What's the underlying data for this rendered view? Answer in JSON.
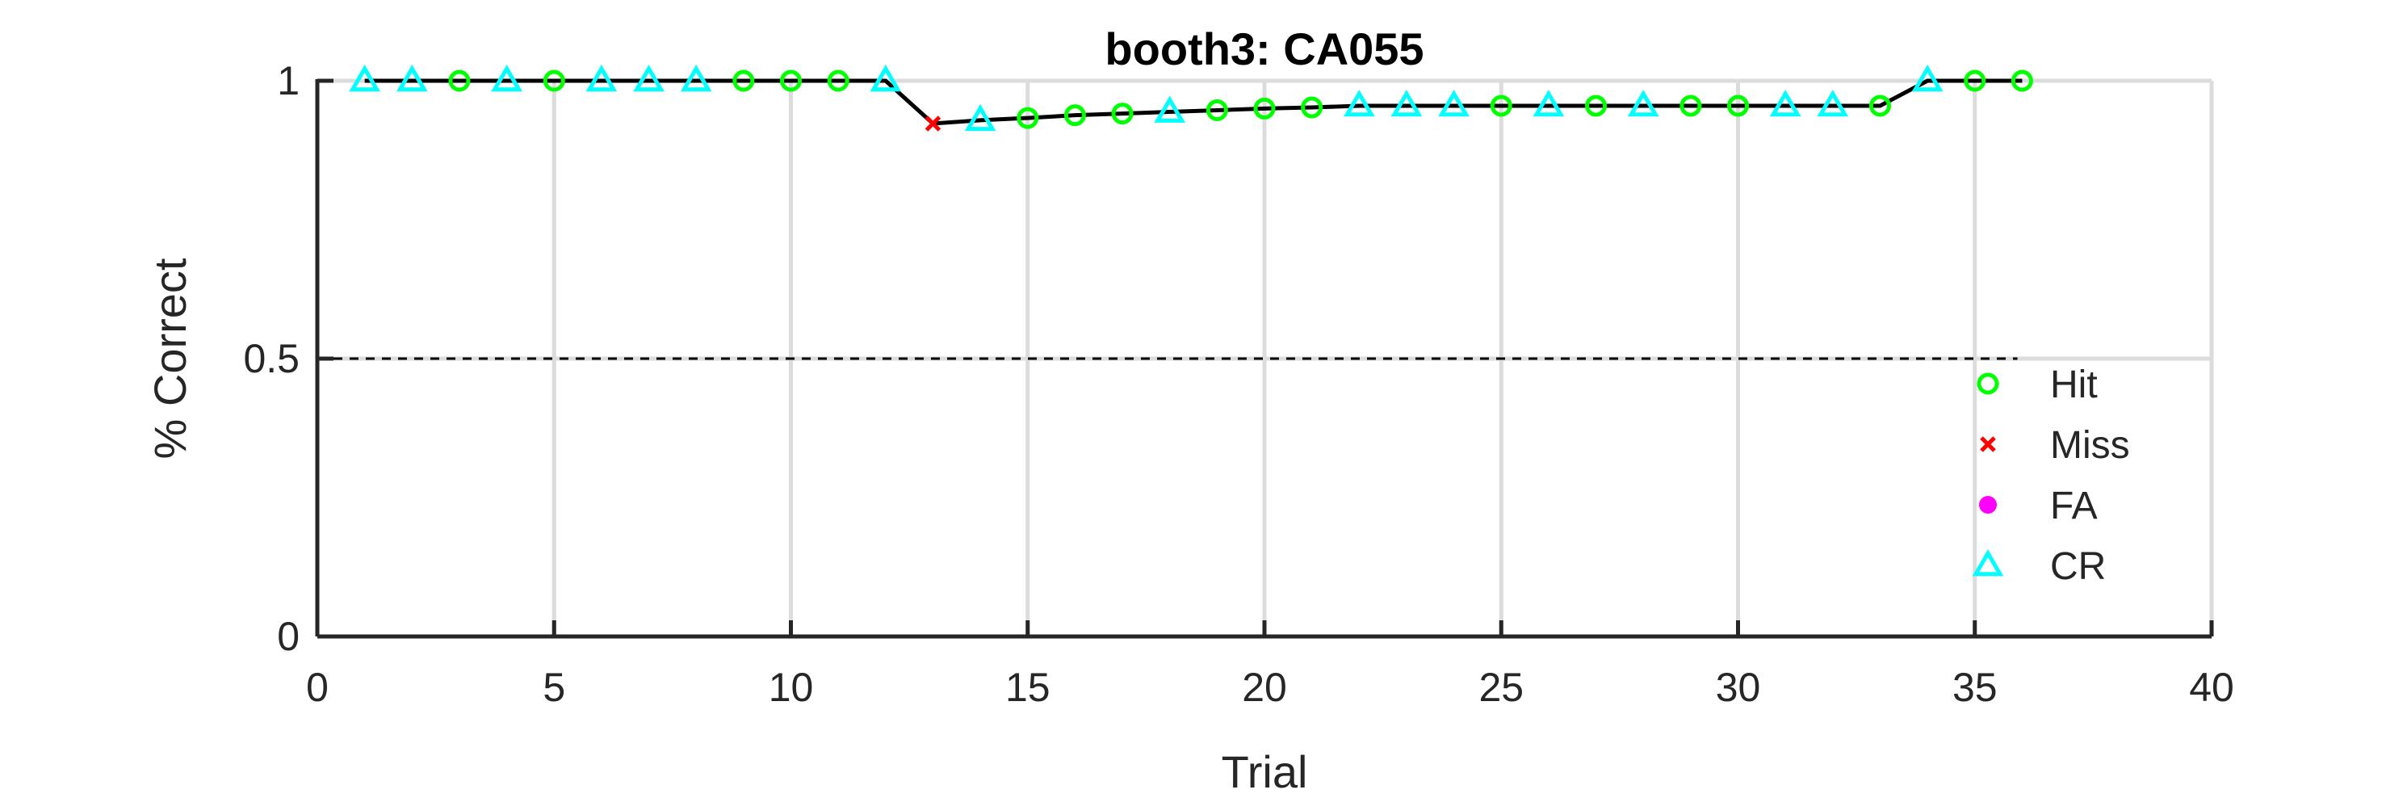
{
  "chart_data": {
    "type": "line",
    "title": "booth3: CA055",
    "xlabel": "Trial",
    "ylabel": "% Correct",
    "xlim": [
      0,
      40
    ],
    "ylim": [
      0,
      1
    ],
    "xticks": [
      "0",
      "5",
      "10",
      "15",
      "20",
      "25",
      "30",
      "35",
      "40"
    ],
    "yticks": [
      "0",
      "0.5",
      "1"
    ],
    "grid": true,
    "reference_line": {
      "y": 0.5,
      "style": "dashed"
    },
    "legend_position": "bottom-right",
    "colors": {
      "Hit": "#00ff00",
      "Miss": "#ff0000",
      "FA": "#ff00ff",
      "CR": "#00ffff",
      "line": "#000000"
    },
    "legend": [
      {
        "name": "Hit",
        "marker": "circle"
      },
      {
        "name": "Miss",
        "marker": "x"
      },
      {
        "name": "FA",
        "marker": "dot"
      },
      {
        "name": "CR",
        "marker": "triangle"
      }
    ],
    "trials": [
      {
        "x": 1,
        "y": 1.0,
        "type": "CR"
      },
      {
        "x": 2,
        "y": 1.0,
        "type": "CR"
      },
      {
        "x": 3,
        "y": 1.0,
        "type": "Hit"
      },
      {
        "x": 4,
        "y": 1.0,
        "type": "CR"
      },
      {
        "x": 5,
        "y": 1.0,
        "type": "Hit"
      },
      {
        "x": 6,
        "y": 1.0,
        "type": "CR"
      },
      {
        "x": 7,
        "y": 1.0,
        "type": "CR"
      },
      {
        "x": 8,
        "y": 1.0,
        "type": "CR"
      },
      {
        "x": 9,
        "y": 1.0,
        "type": "Hit"
      },
      {
        "x": 10,
        "y": 1.0,
        "type": "Hit"
      },
      {
        "x": 11,
        "y": 1.0,
        "type": "Hit"
      },
      {
        "x": 12,
        "y": 1.0,
        "type": "CR"
      },
      {
        "x": 13,
        "y": 0.923,
        "type": "Miss"
      },
      {
        "x": 14,
        "y": 0.929,
        "type": "CR"
      },
      {
        "x": 15,
        "y": 0.933,
        "type": "Hit"
      },
      {
        "x": 16,
        "y": 0.938,
        "type": "Hit"
      },
      {
        "x": 17,
        "y": 0.941,
        "type": "Hit"
      },
      {
        "x": 18,
        "y": 0.944,
        "type": "CR"
      },
      {
        "x": 19,
        "y": 0.947,
        "type": "Hit"
      },
      {
        "x": 20,
        "y": 0.95,
        "type": "Hit"
      },
      {
        "x": 21,
        "y": 0.952,
        "type": "Hit"
      },
      {
        "x": 22,
        "y": 0.955,
        "type": "CR"
      },
      {
        "x": 23,
        "y": 0.955,
        "type": "CR"
      },
      {
        "x": 24,
        "y": 0.955,
        "type": "CR"
      },
      {
        "x": 25,
        "y": 0.955,
        "type": "Hit"
      },
      {
        "x": 26,
        "y": 0.955,
        "type": "CR"
      },
      {
        "x": 27,
        "y": 0.955,
        "type": "Hit"
      },
      {
        "x": 28,
        "y": 0.955,
        "type": "CR"
      },
      {
        "x": 29,
        "y": 0.955,
        "type": "Hit"
      },
      {
        "x": 30,
        "y": 0.955,
        "type": "Hit"
      },
      {
        "x": 31,
        "y": 0.955,
        "type": "CR"
      },
      {
        "x": 32,
        "y": 0.955,
        "type": "CR"
      },
      {
        "x": 33,
        "y": 0.955,
        "type": "Hit"
      },
      {
        "x": 34,
        "y": 1.0,
        "type": "CR"
      },
      {
        "x": 35,
        "y": 1.0,
        "type": "Hit"
      },
      {
        "x": 36,
        "y": 1.0,
        "type": "Hit"
      }
    ]
  }
}
